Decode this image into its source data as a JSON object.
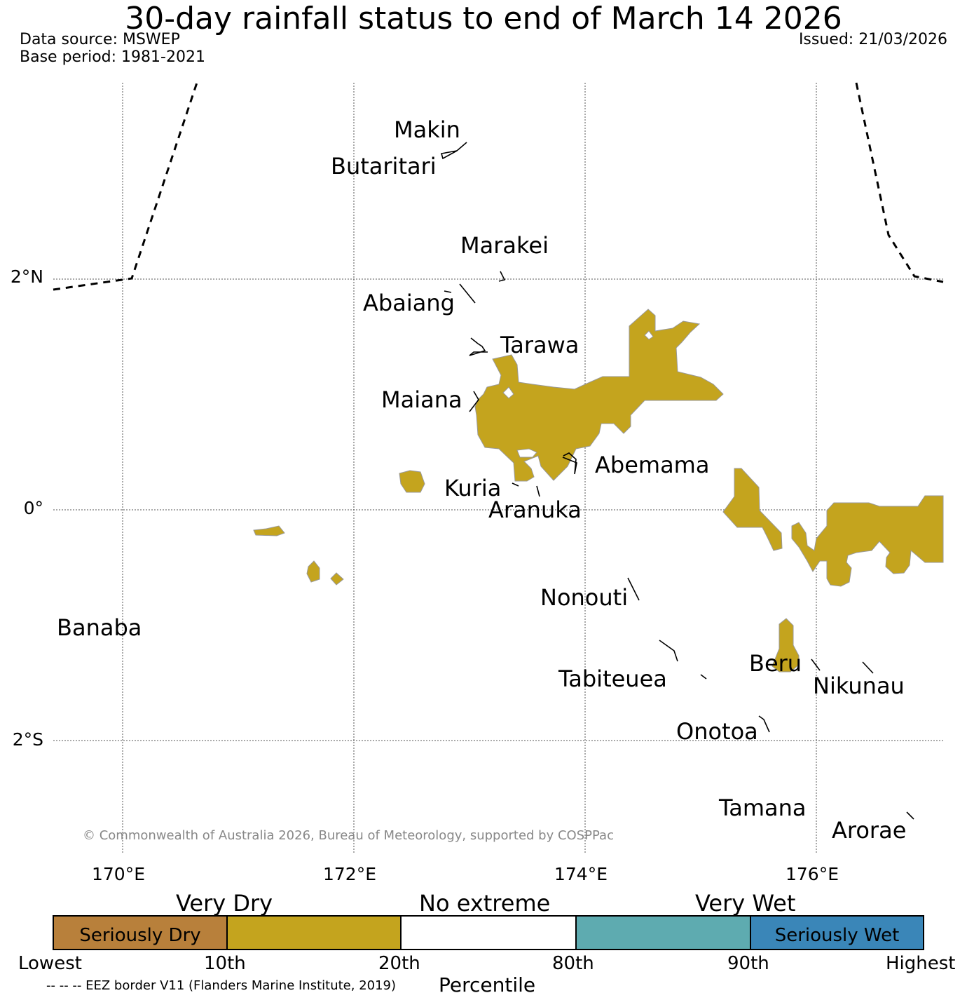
{
  "title": "30-day rainfall status to end of March 14 2026",
  "data_source": "Data source: MSWEP",
  "base_period": "Base period: 1981-2021",
  "issued": "Issued: 21/03/2026",
  "copyright": "© Commonwealth of Australia 2026, Bureau of Meteorology, supported by COSPPac",
  "latitudes": [
    "2°N",
    "0°",
    "2°S"
  ],
  "longitudes": [
    "170°E",
    "172°E",
    "174°E",
    "176°E"
  ],
  "islands": [
    "Makin",
    "Butaritari",
    "Marakei",
    "Abaiang",
    "Tarawa",
    "Maiana",
    "Abemama",
    "Kuria",
    "Aranuka",
    "Banaba",
    "Nonouti",
    "Tabiteuea",
    "Beru",
    "Nikunau",
    "Onotoa",
    "Tamana",
    "Arorae"
  ],
  "legend": {
    "top_labels": [
      "Very Dry",
      "No extreme",
      "Very Wet"
    ],
    "boxes": [
      "Seriously Dry",
      "",
      "",
      "",
      "Seriously Wet"
    ],
    "colors": [
      "#b8803b",
      "#c4a41e",
      "#ffffff",
      "#5eabb0",
      "#3a86b8"
    ],
    "ticks": [
      "Lowest",
      "10th",
      "20th",
      "80th",
      "90th",
      "Highest"
    ],
    "axis_label": "Percentile",
    "eez_note": "-- -- -- EEZ border V11 (Flanders Marine Institute, 2019)"
  },
  "colors": {
    "very_dry": "#c4a41e"
  }
}
